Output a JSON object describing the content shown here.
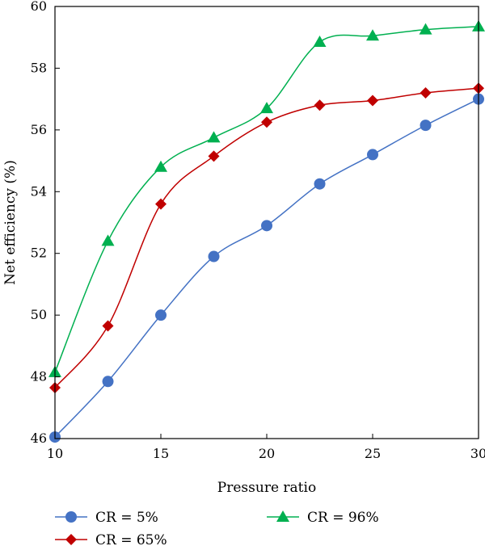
{
  "chart_data": {
    "type": "line",
    "xlabel": "Pressure ratio",
    "ylabel": "Net efficiency (%)",
    "xlim": [
      10,
      30
    ],
    "ylim": [
      46,
      60
    ],
    "xticks": [
      10,
      15,
      20,
      25,
      30
    ],
    "yticks": [
      46,
      48,
      50,
      52,
      54,
      56,
      58,
      60
    ],
    "grid": false,
    "legend_position": "bottom",
    "x": [
      10,
      12.5,
      15,
      17.5,
      20,
      22.5,
      25,
      27.5,
      30
    ],
    "series": [
      {
        "name": "CR = 5%",
        "marker": "circle",
        "color": "#4472c4",
        "values": [
          46.05,
          47.85,
          50.0,
          51.9,
          52.9,
          54.25,
          55.2,
          56.15,
          57.0
        ]
      },
      {
        "name": "CR = 65%",
        "marker": "diamond",
        "color": "#c00000",
        "values": [
          47.65,
          49.65,
          53.6,
          55.15,
          56.25,
          56.8,
          56.95,
          57.2,
          57.35
        ]
      },
      {
        "name": "CR = 96%",
        "marker": "triangle",
        "color": "#00b050",
        "values": [
          48.15,
          52.4,
          54.8,
          55.75,
          56.7,
          58.85,
          59.05,
          59.25,
          59.35
        ]
      }
    ]
  }
}
